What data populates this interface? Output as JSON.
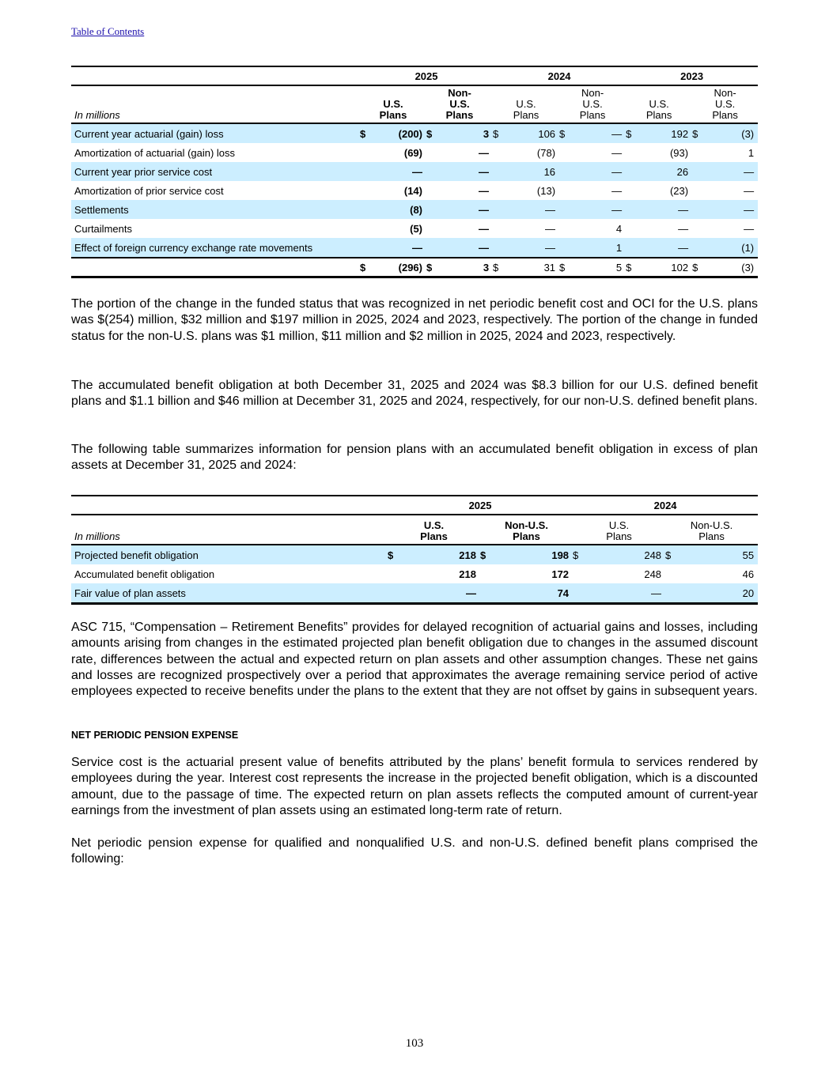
{
  "toc_link": "Table of Contents",
  "table1": {
    "unit_label": "In millions",
    "years": [
      "2025",
      "2024",
      "2023"
    ],
    "col_headers": [
      "U.S.\nPlans",
      "Non-\nU.S.\nPlans",
      "U.S.\nPlans",
      "Non-\nU.S.\nPlans",
      "U.S.\nPlans",
      "Non-\nU.S.\nPlans"
    ],
    "rows": [
      {
        "label": "Current year actuarial (gain) loss",
        "values": [
          "(200)",
          "3",
          "106",
          "—",
          "192",
          "(3)"
        ],
        "dollar": true
      },
      {
        "label": "Amortization of actuarial (gain) loss",
        "values": [
          "(69)",
          "—",
          "(78)",
          "—",
          "(93)",
          "1"
        ]
      },
      {
        "label": "Current year prior service cost",
        "values": [
          "—",
          "—",
          "16",
          "—",
          "26",
          "—"
        ]
      },
      {
        "label": "Amortization of prior service cost",
        "values": [
          "(14)",
          "—",
          "(13)",
          "—",
          "(23)",
          "—"
        ]
      },
      {
        "label": "Settlements",
        "values": [
          "(8)",
          "—",
          "—",
          "—",
          "—",
          "—"
        ]
      },
      {
        "label": "Curtailments",
        "values": [
          "(5)",
          "—",
          "—",
          "4",
          "—",
          "—"
        ]
      },
      {
        "label": "Effect of foreign currency exchange rate movements",
        "values": [
          "—",
          "—",
          "—",
          "1",
          "—",
          "(1)"
        ]
      }
    ],
    "total": {
      "label": "",
      "values": [
        "(296)",
        "3",
        "31",
        "5",
        "102",
        "(3)"
      ]
    },
    "currency": "$"
  },
  "para1": "The portion of the change in the funded status that was recognized in net periodic benefit cost and OCI for the U.S. plans was $(254) million, $32 million and $197 million in 2025, 2024 and 2023, respectively. The portion of the change in funded status for the non-U.S. plans was $1 million, $11 million and $2 million in 2025, 2024 and 2023, respectively.",
  "para2": "The accumulated benefit obligation at both December 31, 2025 and 2024 was $8.3 billion for our U.S. defined benefit plans and $1.1 billion and $46 million at December 31, 2025 and 2024, respectively, for our non-U.S. defined benefit plans.",
  "para3": "The following table summarizes information for pension plans with an accumulated benefit obligation in excess of plan assets at December 31, 2025 and 2024:",
  "table2": {
    "unit_label": "In millions",
    "years": [
      "2025",
      "2024"
    ],
    "col_headers": [
      "U.S.\nPlans",
      "Non-U.S.\nPlans",
      "U.S.\nPlans",
      "Non-U.S.\nPlans"
    ],
    "rows": [
      {
        "label": "Projected benefit obligation",
        "values": [
          "218",
          "198",
          "248",
          "55"
        ],
        "dollar": true
      },
      {
        "label": "Accumulated benefit obligation",
        "values": [
          "218",
          "172",
          "248",
          "46"
        ]
      },
      {
        "label": "Fair value of plan assets",
        "values": [
          "—",
          "74",
          "—",
          "20"
        ]
      }
    ],
    "currency": "$"
  },
  "para4": "ASC 715, “Compensation – Retirement Benefits” provides for delayed recognition of actuarial gains and losses, including amounts arising from changes in the estimated projected plan benefit obligation due to changes in the assumed discount rate, differences between the actual and expected return on plan assets and other assumption changes. These net gains and losses are recognized prospectively over a period that approximates the average remaining service period of active employees expected to receive benefits under the plans to the extent that they are not offset by gains in subsequent years.",
  "heading": "NET PERIODIC PENSION EXPENSE",
  "para5": "Service cost is the actuarial present value of benefits attributed by the plans’ benefit formula to services rendered by employees during the year. Interest cost represents the increase in the projected benefit obligation, which is a discounted amount, due to the passage of time. The expected return on plan assets reflects the computed amount of current-year earnings from the investment of plan assets using an estimated long-term rate of return.",
  "para6": "Net periodic pension expense for qualified and nonqualified U.S. and non-U.S. defined benefit plans comprised the following:",
  "page_number": "103"
}
